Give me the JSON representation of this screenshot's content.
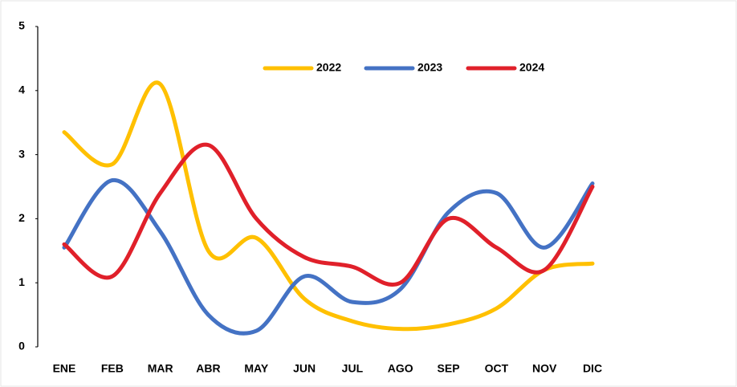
{
  "chart_data": {
    "type": "line",
    "categories": [
      "ENE",
      "FEB",
      "MAR",
      "ABR",
      "MAY",
      "JUN",
      "JUL",
      "AGO",
      "SEP",
      "OCT",
      "NOV",
      "DIC"
    ],
    "series": [
      {
        "name": "2022",
        "color": "#FFC000",
        "values": [
          3.35,
          2.85,
          4.1,
          1.5,
          1.7,
          0.75,
          0.4,
          0.28,
          0.35,
          0.6,
          1.2,
          1.3
        ]
      },
      {
        "name": "2023",
        "color": "#4472C4",
        "values": [
          1.55,
          2.6,
          1.8,
          0.5,
          0.25,
          1.1,
          0.7,
          0.9,
          2.1,
          2.4,
          1.55,
          2.55
        ]
      },
      {
        "name": "2024",
        "color": "#E0202A",
        "values": [
          1.6,
          1.1,
          2.4,
          3.15,
          2.0,
          1.4,
          1.25,
          1.0,
          2.0,
          1.55,
          1.2,
          2.5
        ]
      }
    ],
    "ylim": [
      0,
      5
    ],
    "yticks": [
      0,
      1,
      2,
      3,
      4,
      5
    ],
    "smooth": true
  }
}
